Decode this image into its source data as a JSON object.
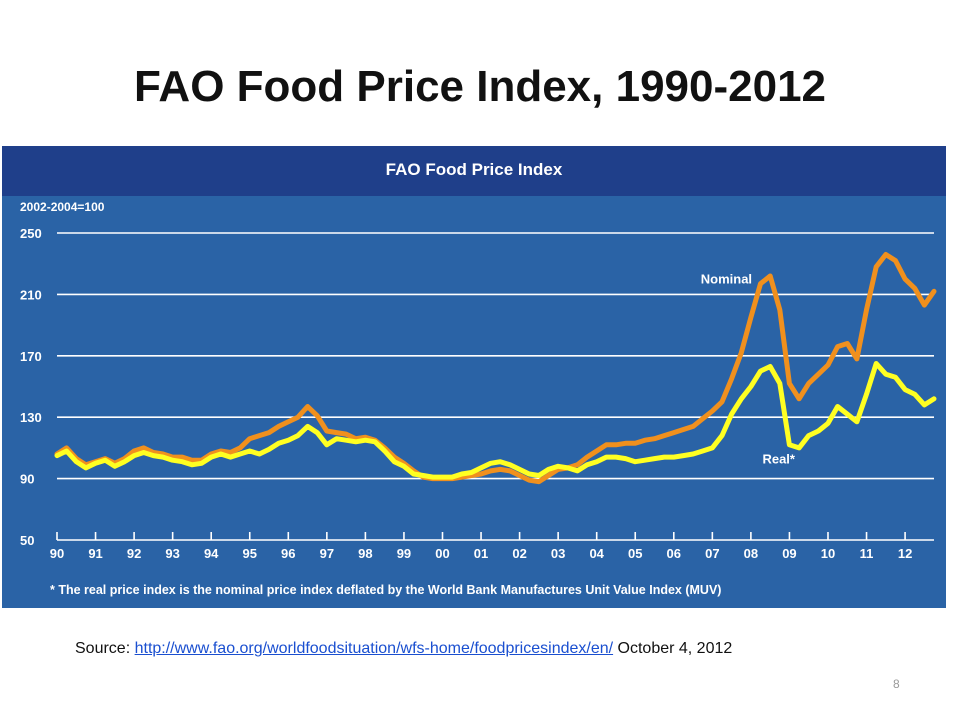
{
  "slide": {
    "title": "FAO Food Price Index, 1990-2012",
    "source_prefix": "Source: ",
    "source_link": "http://www.fao.org/worldfoodsituation/wfs-home/foodpricesindex/en/",
    "source_suffix": " October 4, 2012",
    "page_number": "8"
  },
  "colors": {
    "panel": "#2a63a6",
    "header": "#1f3f8a",
    "nominal": "#f0901e",
    "real": "#ffff22",
    "text": "#ffffff"
  },
  "chart_data": {
    "type": "line",
    "title": "FAO Food Price Index",
    "ylabel": "2002-2004=100",
    "ylim": [
      50,
      250
    ],
    "yticks": [
      50,
      90,
      130,
      170,
      210,
      250
    ],
    "xlim": [
      1990,
      2012.75
    ],
    "xticks": [
      {
        "x": 1990,
        "label": "90"
      },
      {
        "x": 1991,
        "label": "91"
      },
      {
        "x": 1992,
        "label": "92"
      },
      {
        "x": 1993,
        "label": "93"
      },
      {
        "x": 1994,
        "label": "94"
      },
      {
        "x": 1995,
        "label": "95"
      },
      {
        "x": 1996,
        "label": "96"
      },
      {
        "x": 1997,
        "label": "97"
      },
      {
        "x": 1998,
        "label": "98"
      },
      {
        "x": 1999,
        "label": "99"
      },
      {
        "x": 2000,
        "label": "00"
      },
      {
        "x": 2001,
        "label": "01"
      },
      {
        "x": 2002,
        "label": "02"
      },
      {
        "x": 2003,
        "label": "03"
      },
      {
        "x": 2004,
        "label": "04"
      },
      {
        "x": 2005,
        "label": "05"
      },
      {
        "x": 2006,
        "label": "06"
      },
      {
        "x": 2007,
        "label": "07"
      },
      {
        "x": 2008,
        "label": "08"
      },
      {
        "x": 2009,
        "label": "09"
      },
      {
        "x": 2010,
        "label": "10"
      },
      {
        "x": 2011,
        "label": "11"
      },
      {
        "x": 2012,
        "label": "12"
      }
    ],
    "grid": true,
    "footnote": "* The real price index is the nominal price index deflated by the World Bank Manufactures Unit Value Index (MUV)",
    "series": [
      {
        "name": "Nominal",
        "color": "#f0901e",
        "points": [
          [
            1990.0,
            106
          ],
          [
            1990.25,
            110
          ],
          [
            1990.5,
            103
          ],
          [
            1990.75,
            99
          ],
          [
            1991.0,
            101
          ],
          [
            1991.25,
            103
          ],
          [
            1991.5,
            100
          ],
          [
            1991.75,
            103
          ],
          [
            1992.0,
            108
          ],
          [
            1992.25,
            110
          ],
          [
            1992.5,
            107
          ],
          [
            1992.75,
            106
          ],
          [
            1993.0,
            104
          ],
          [
            1993.25,
            104
          ],
          [
            1993.5,
            102
          ],
          [
            1993.75,
            102
          ],
          [
            1994.0,
            106
          ],
          [
            1994.25,
            108
          ],
          [
            1994.5,
            107
          ],
          [
            1994.75,
            110
          ],
          [
            1995.0,
            116
          ],
          [
            1995.25,
            118
          ],
          [
            1995.5,
            120
          ],
          [
            1995.75,
            124
          ],
          [
            1996.0,
            127
          ],
          [
            1996.25,
            130
          ],
          [
            1996.5,
            137
          ],
          [
            1996.75,
            131
          ],
          [
            1997.0,
            121
          ],
          [
            1997.25,
            120
          ],
          [
            1997.5,
            119
          ],
          [
            1997.75,
            116
          ],
          [
            1998.0,
            117
          ],
          [
            1998.25,
            115
          ],
          [
            1998.5,
            110
          ],
          [
            1998.75,
            104
          ],
          [
            1999.0,
            100
          ],
          [
            1999.25,
            95
          ],
          [
            1999.5,
            91
          ],
          [
            1999.75,
            90
          ],
          [
            2000.0,
            90
          ],
          [
            2000.25,
            90
          ],
          [
            2000.5,
            91
          ],
          [
            2000.75,
            92
          ],
          [
            2001.0,
            93
          ],
          [
            2001.25,
            95
          ],
          [
            2001.5,
            96
          ],
          [
            2001.75,
            95
          ],
          [
            2002.0,
            92
          ],
          [
            2002.25,
            89
          ],
          [
            2002.5,
            88
          ],
          [
            2002.75,
            92
          ],
          [
            2003.0,
            96
          ],
          [
            2003.25,
            97
          ],
          [
            2003.5,
            99
          ],
          [
            2003.75,
            104
          ],
          [
            2004.0,
            108
          ],
          [
            2004.25,
            112
          ],
          [
            2004.5,
            112
          ],
          [
            2004.75,
            113
          ],
          [
            2005.0,
            113
          ],
          [
            2005.25,
            115
          ],
          [
            2005.5,
            116
          ],
          [
            2005.75,
            118
          ],
          [
            2006.0,
            120
          ],
          [
            2006.25,
            122
          ],
          [
            2006.5,
            124
          ],
          [
            2006.75,
            129
          ],
          [
            2007.0,
            134
          ],
          [
            2007.25,
            140
          ],
          [
            2007.5,
            155
          ],
          [
            2007.75,
            172
          ],
          [
            2008.0,
            195
          ],
          [
            2008.25,
            217
          ],
          [
            2008.5,
            222
          ],
          [
            2008.75,
            200
          ],
          [
            2009.0,
            152
          ],
          [
            2009.25,
            142
          ],
          [
            2009.5,
            152
          ],
          [
            2009.75,
            158
          ],
          [
            2010.0,
            164
          ],
          [
            2010.25,
            176
          ],
          [
            2010.5,
            178
          ],
          [
            2010.75,
            168
          ],
          [
            2011.0,
            200
          ],
          [
            2011.25,
            228
          ],
          [
            2011.5,
            236
          ],
          [
            2011.75,
            232
          ],
          [
            2012.0,
            220
          ],
          [
            2012.25,
            214
          ],
          [
            2012.5,
            203
          ],
          [
            2012.75,
            212
          ]
        ]
      },
      {
        "name": "Real*",
        "color": "#ffff22",
        "points": [
          [
            1990.0,
            105
          ],
          [
            1990.25,
            108
          ],
          [
            1990.5,
            101
          ],
          [
            1990.75,
            97
          ],
          [
            1991.0,
            100
          ],
          [
            1991.25,
            102
          ],
          [
            1991.5,
            98
          ],
          [
            1991.75,
            101
          ],
          [
            1992.0,
            105
          ],
          [
            1992.25,
            107
          ],
          [
            1992.5,
            105
          ],
          [
            1992.75,
            104
          ],
          [
            1993.0,
            102
          ],
          [
            1993.25,
            101
          ],
          [
            1993.5,
            99
          ],
          [
            1993.75,
            100
          ],
          [
            1994.0,
            104
          ],
          [
            1994.25,
            106
          ],
          [
            1994.5,
            104
          ],
          [
            1994.75,
            106
          ],
          [
            1995.0,
            108
          ],
          [
            1995.25,
            106
          ],
          [
            1995.5,
            109
          ],
          [
            1995.75,
            113
          ],
          [
            1996.0,
            115
          ],
          [
            1996.25,
            118
          ],
          [
            1996.5,
            124
          ],
          [
            1996.75,
            120
          ],
          [
            1997.0,
            112
          ],
          [
            1997.25,
            116
          ],
          [
            1997.5,
            115
          ],
          [
            1997.75,
            114
          ],
          [
            1998.0,
            115
          ],
          [
            1998.25,
            114
          ],
          [
            1998.5,
            108
          ],
          [
            1998.75,
            101
          ],
          [
            1999.0,
            98
          ],
          [
            1999.25,
            93
          ],
          [
            1999.5,
            92
          ],
          [
            1999.75,
            91
          ],
          [
            2000.0,
            91
          ],
          [
            2000.25,
            91
          ],
          [
            2000.5,
            93
          ],
          [
            2000.75,
            94
          ],
          [
            2001.0,
            97
          ],
          [
            2001.25,
            100
          ],
          [
            2001.5,
            101
          ],
          [
            2001.75,
            99
          ],
          [
            2002.0,
            96
          ],
          [
            2002.25,
            93
          ],
          [
            2002.5,
            92
          ],
          [
            2002.75,
            96
          ],
          [
            2003.0,
            98
          ],
          [
            2003.25,
            97
          ],
          [
            2003.5,
            95
          ],
          [
            2003.75,
            99
          ],
          [
            2004.0,
            101
          ],
          [
            2004.25,
            104
          ],
          [
            2004.5,
            104
          ],
          [
            2004.75,
            103
          ],
          [
            2005.0,
            101
          ],
          [
            2005.25,
            102
          ],
          [
            2005.5,
            103
          ],
          [
            2005.75,
            104
          ],
          [
            2006.0,
            104
          ],
          [
            2006.25,
            105
          ],
          [
            2006.5,
            106
          ],
          [
            2006.75,
            108
          ],
          [
            2007.0,
            110
          ],
          [
            2007.25,
            118
          ],
          [
            2007.5,
            132
          ],
          [
            2007.75,
            142
          ],
          [
            2008.0,
            150
          ],
          [
            2008.25,
            160
          ],
          [
            2008.5,
            163
          ],
          [
            2008.75,
            152
          ],
          [
            2009.0,
            112
          ],
          [
            2009.25,
            110
          ],
          [
            2009.5,
            118
          ],
          [
            2009.75,
            121
          ],
          [
            2010.0,
            126
          ],
          [
            2010.25,
            137
          ],
          [
            2010.5,
            132
          ],
          [
            2010.75,
            127
          ],
          [
            2011.0,
            145
          ],
          [
            2011.25,
            165
          ],
          [
            2011.5,
            158
          ],
          [
            2011.75,
            156
          ],
          [
            2012.0,
            148
          ],
          [
            2012.25,
            145
          ],
          [
            2012.5,
            138
          ],
          [
            2012.75,
            142
          ]
        ]
      }
    ]
  }
}
